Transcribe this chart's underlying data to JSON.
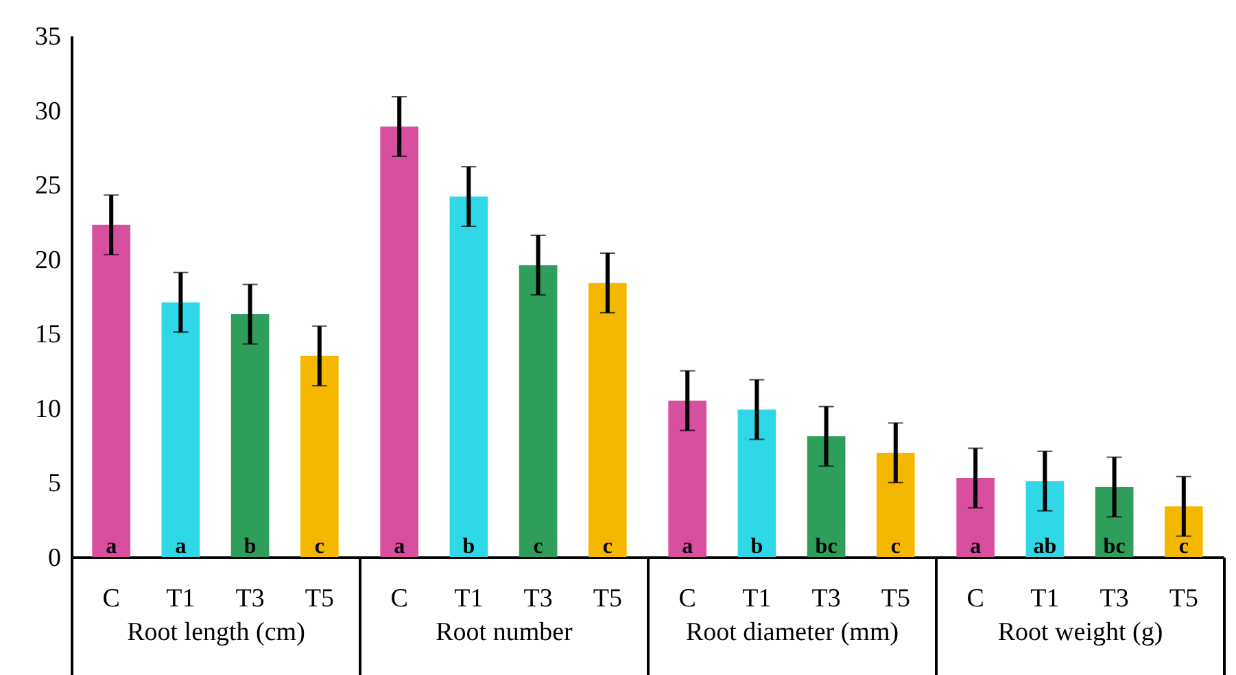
{
  "chart_data": {
    "type": "bar",
    "categories": [
      "Root length (cm)",
      "Root number",
      "Root diameter (mm)",
      "Root weight (g)"
    ],
    "series": [
      {
        "name": "C",
        "color": "#d94fa0",
        "values": [
          22.3,
          28.9,
          10.5,
          5.3
        ],
        "errors": [
          2,
          2,
          2,
          2
        ],
        "value_labels": [
          "a",
          "a",
          "a",
          "a"
        ]
      },
      {
        "name": "T1",
        "color": "#2fd8e6",
        "values": [
          17.1,
          24.2,
          9.9,
          5.1
        ],
        "errors": [
          2,
          2,
          2,
          2
        ],
        "value_labels": [
          "a",
          "b",
          "b",
          "ab"
        ]
      },
      {
        "name": "T3",
        "color": "#2e9e5a",
        "values": [
          16.3,
          19.6,
          8.1,
          4.7
        ],
        "errors": [
          2,
          2,
          2,
          2
        ],
        "value_labels": [
          "b",
          "c",
          "bc",
          "bc"
        ]
      },
      {
        "name": "T5",
        "color": "#f5b800",
        "values": [
          13.5,
          18.4,
          7.0,
          3.4
        ],
        "errors": [
          2,
          2,
          2,
          2
        ],
        "value_labels": [
          "c",
          "c",
          "c",
          "c"
        ]
      }
    ],
    "ylim": [
      0,
      35
    ],
    "yticks": [
      0,
      5,
      10,
      15,
      20,
      25,
      30,
      35
    ],
    "grid": false,
    "legend": false
  }
}
